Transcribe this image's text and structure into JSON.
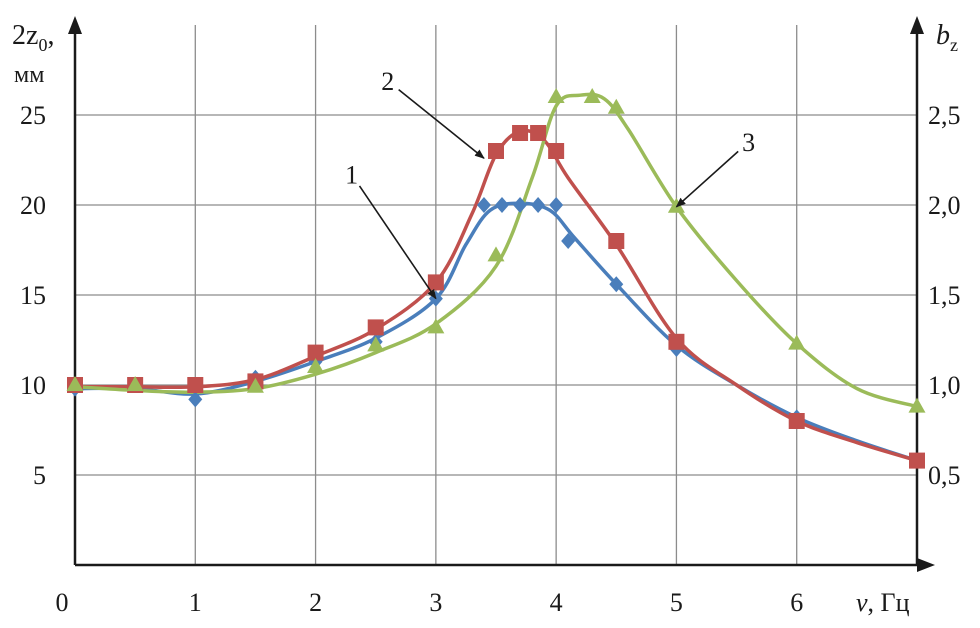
{
  "chart_data": {
    "type": "line",
    "x_axis": {
      "range": [
        0,
        7
      ],
      "ticks": [
        0,
        1,
        2,
        3,
        4,
        5,
        6
      ],
      "tick_labels": [
        "0",
        "1",
        "2",
        "3",
        "4",
        "5",
        "6"
      ],
      "label_symbol": "ν",
      "label_unit": ", Гц"
    },
    "y_left": {
      "range": [
        0,
        30
      ],
      "ticks": [
        5,
        10,
        15,
        20,
        25
      ],
      "tick_labels": [
        "5",
        "10",
        "15",
        "20",
        "25"
      ],
      "label_main": "2z",
      "label_sub": "0",
      "label_comma": ",",
      "label_unit": "мм"
    },
    "y_right": {
      "range": [
        0,
        3.0
      ],
      "ticks": [
        0.5,
        1.0,
        1.5,
        2.0,
        2.5
      ],
      "tick_labels": [
        "0,5",
        "1,0",
        "1,5",
        "2,0",
        "2,5"
      ],
      "label_main": "b",
      "label_sub": "z"
    },
    "grid": true,
    "series": [
      {
        "id": "1",
        "color": "#4a7ebb",
        "marker": "diamond",
        "axis": "left",
        "points": [
          [
            0,
            9.8
          ],
          [
            0.5,
            10.0
          ],
          [
            1.0,
            9.2
          ],
          [
            1.5,
            10.4
          ],
          [
            2.0,
            11.3
          ],
          [
            2.5,
            12.4
          ],
          [
            3.0,
            14.8
          ],
          [
            3.4,
            20.0
          ],
          [
            3.55,
            20.0
          ],
          [
            3.7,
            20.0
          ],
          [
            3.85,
            20.0
          ],
          [
            4.0,
            20.0
          ],
          [
            4.1,
            18.0
          ],
          [
            4.5,
            15.6
          ],
          [
            5.0,
            12.0
          ],
          [
            6.0,
            8.2
          ],
          [
            7.0,
            5.8
          ]
        ],
        "curve": [
          [
            0,
            9.8
          ],
          [
            0.5,
            9.8
          ],
          [
            1.0,
            9.5
          ],
          [
            1.5,
            10.2
          ],
          [
            2.0,
            11.3
          ],
          [
            2.5,
            12.6
          ],
          [
            3.0,
            14.8
          ],
          [
            3.25,
            17.8
          ],
          [
            3.45,
            19.7
          ],
          [
            3.7,
            20.1
          ],
          [
            3.95,
            19.7
          ],
          [
            4.15,
            18.2
          ],
          [
            4.5,
            15.6
          ],
          [
            5.0,
            12.2
          ],
          [
            5.5,
            10.0
          ],
          [
            6.0,
            8.2
          ],
          [
            6.5,
            6.9
          ],
          [
            7.0,
            5.8
          ]
        ]
      },
      {
        "id": "2",
        "color": "#c0504d",
        "marker": "square",
        "axis": "left",
        "points": [
          [
            0,
            10.0
          ],
          [
            0.5,
            10.0
          ],
          [
            1.0,
            10.0
          ],
          [
            1.5,
            10.2
          ],
          [
            2.0,
            11.8
          ],
          [
            2.5,
            13.2
          ],
          [
            3.0,
            15.7
          ],
          [
            3.5,
            23.0
          ],
          [
            3.7,
            24.0
          ],
          [
            3.85,
            24.0
          ],
          [
            4.0,
            23.0
          ],
          [
            4.5,
            18.0
          ],
          [
            5.0,
            12.4
          ],
          [
            6.0,
            8.0
          ],
          [
            7.0,
            5.8
          ]
        ],
        "curve": [
          [
            0,
            9.9
          ],
          [
            0.5,
            9.9
          ],
          [
            1.0,
            9.9
          ],
          [
            1.5,
            10.3
          ],
          [
            2.0,
            11.6
          ],
          [
            2.5,
            13.1
          ],
          [
            3.0,
            15.7
          ],
          [
            3.3,
            19.5
          ],
          [
            3.5,
            22.8
          ],
          [
            3.7,
            24.1
          ],
          [
            3.9,
            23.6
          ],
          [
            4.1,
            21.5
          ],
          [
            4.5,
            17.8
          ],
          [
            5.0,
            12.6
          ],
          [
            5.5,
            10.0
          ],
          [
            6.0,
            8.0
          ],
          [
            6.5,
            6.8
          ],
          [
            7.0,
            5.8
          ]
        ]
      },
      {
        "id": "3",
        "color": "#9bbb59",
        "marker": "triangle",
        "axis": "right",
        "points": [
          [
            0,
            1.0
          ],
          [
            0.5,
            1.0
          ],
          [
            1.5,
            0.99
          ],
          [
            2.0,
            1.1
          ],
          [
            2.5,
            1.22
          ],
          [
            3.0,
            1.32
          ],
          [
            3.5,
            1.72
          ],
          [
            4.0,
            2.6
          ],
          [
            4.3,
            2.6
          ],
          [
            4.5,
            2.54
          ],
          [
            5.0,
            1.99
          ],
          [
            6.0,
            1.23
          ],
          [
            7.0,
            0.88
          ]
        ],
        "curve": [
          [
            0,
            0.99
          ],
          [
            0.5,
            0.97
          ],
          [
            1.0,
            0.96
          ],
          [
            1.5,
            0.98
          ],
          [
            2.0,
            1.06
          ],
          [
            2.5,
            1.18
          ],
          [
            3.0,
            1.34
          ],
          [
            3.5,
            1.66
          ],
          [
            3.8,
            2.15
          ],
          [
            4.0,
            2.55
          ],
          [
            4.2,
            2.61
          ],
          [
            4.4,
            2.59
          ],
          [
            4.6,
            2.42
          ],
          [
            5.0,
            1.99
          ],
          [
            5.5,
            1.58
          ],
          [
            6.0,
            1.23
          ],
          [
            6.5,
            0.98
          ],
          [
            7.0,
            0.88
          ]
        ]
      }
    ],
    "annotations": [
      {
        "text": "1",
        "label_at": [
          2.3,
          21.2
        ],
        "arrow_to": [
          3.0,
          14.8
        ]
      },
      {
        "text": "2",
        "label_at": [
          2.6,
          26.4
        ],
        "arrow_to": [
          3.4,
          22.6
        ]
      },
      {
        "text": "3",
        "label_at": [
          5.6,
          2.3
        ],
        "arrow_to": [
          5.0,
          1.99
        ],
        "axis": "right"
      }
    ]
  }
}
